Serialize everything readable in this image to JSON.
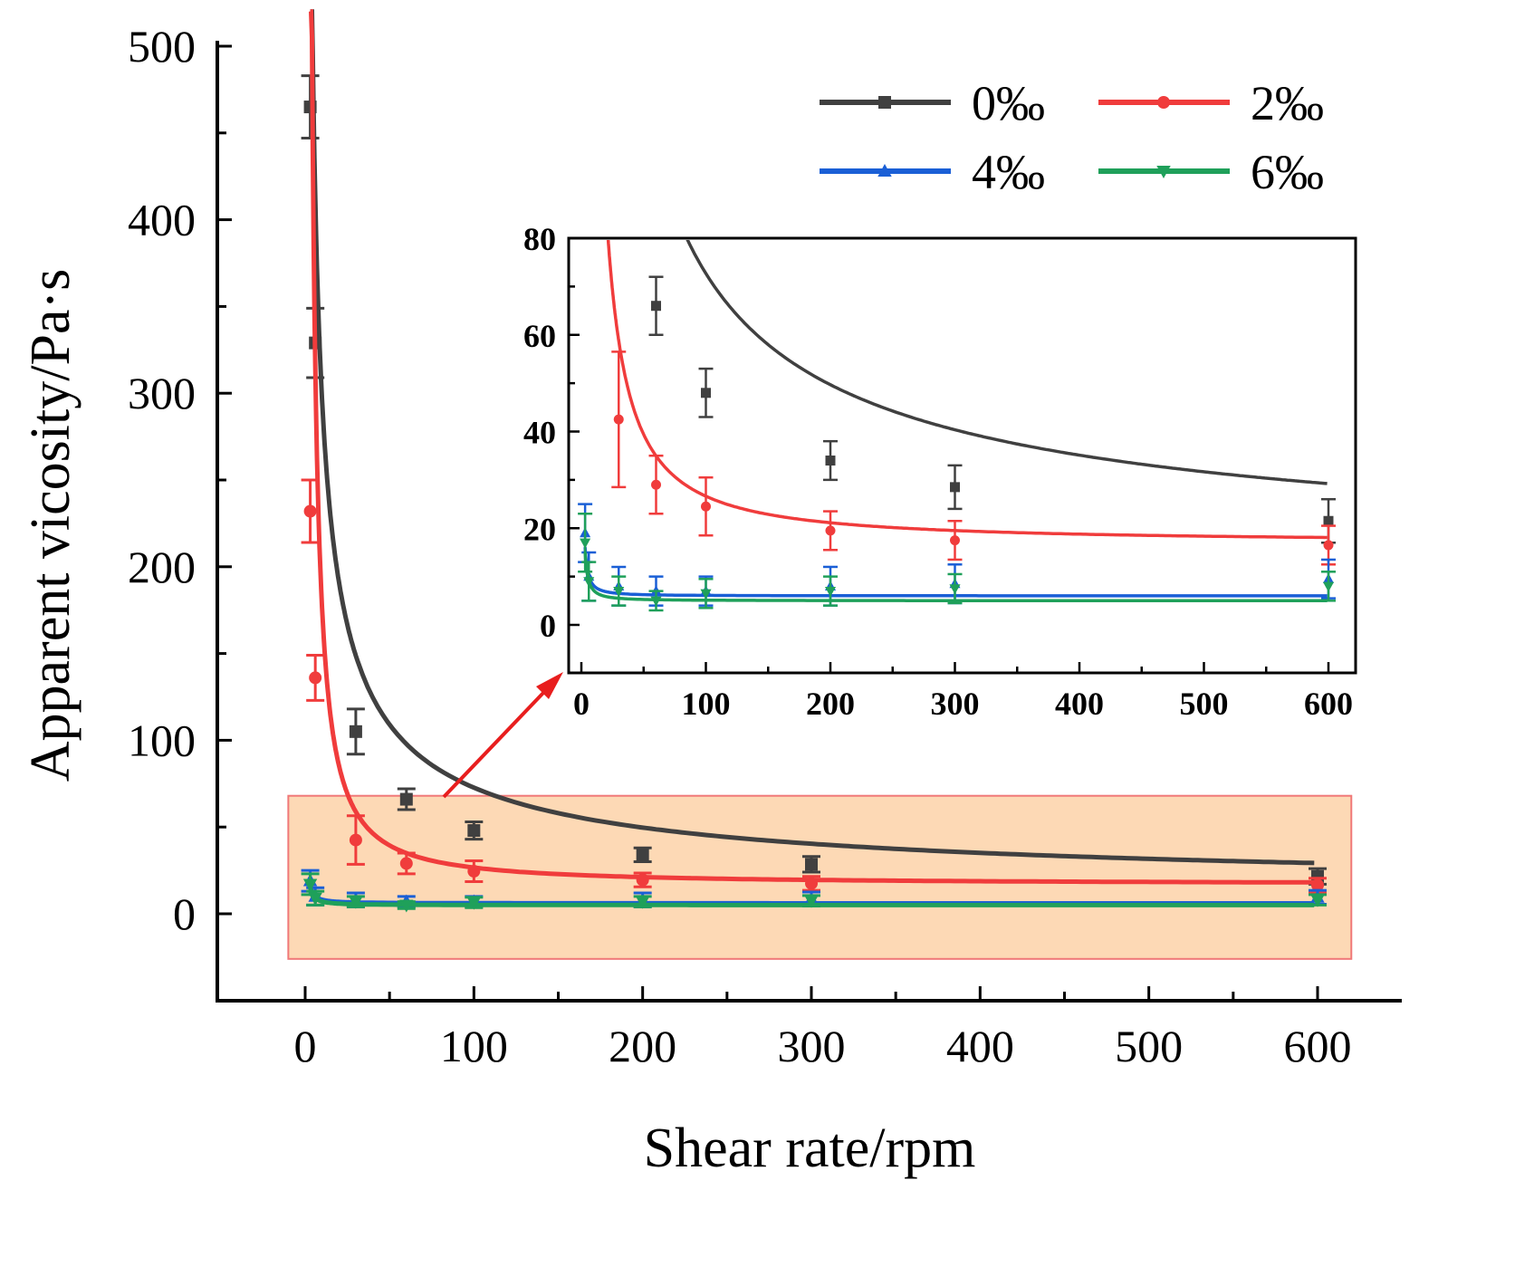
{
  "chart_data": [
    {
      "type": "line",
      "title": "",
      "xlabel": "Shear rate/rpm",
      "ylabel": "Apparent vicosity/Pa·s",
      "xlim": [
        -50,
        650
      ],
      "ylim": [
        -50,
        500
      ],
      "xticks": [
        "0",
        "100",
        "200",
        "300",
        "400",
        "500",
        "600"
      ],
      "yticks": [
        "0",
        "100",
        "200",
        "300",
        "400",
        "500"
      ],
      "legend_position": "top-right",
      "highlight_region": {
        "x": [
          -10,
          620
        ],
        "y": [
          -26,
          68
        ],
        "color": "#fdd9b5"
      },
      "x": [
        3,
        6,
        30,
        60,
        100,
        200,
        300,
        600
      ],
      "series": [
        {
          "name": "0‰",
          "color": "#404040",
          "marker": "square",
          "values": [
            465,
            329,
            105,
            66,
            48,
            34,
            28.5,
            21.5
          ],
          "errors": [
            18,
            20,
            13,
            6,
            5,
            4,
            4.5,
            4.5
          ],
          "fit": {
            "a": 1310,
            "b": 0.66,
            "c": 10
          }
        },
        {
          "name": "2‰",
          "color": "#f03c3c",
          "marker": "circle",
          "values": [
            232,
            136,
            42.5,
            29,
            24.5,
            19.5,
            17.5,
            16.5
          ],
          "errors": [
            18,
            13,
            14,
            6,
            6,
            4,
            4,
            4
          ],
          "fit": {
            "a": 2650,
            "b": 1.22,
            "c": 17
          }
        },
        {
          "name": "4‰",
          "color": "#1a5fd6",
          "marker": "triangle-up",
          "values": [
            19,
            10,
            8,
            7,
            7,
            8,
            8.5,
            9.5
          ],
          "errors": [
            6,
            5,
            4,
            3,
            3,
            4,
            4,
            4
          ],
          "fit": {
            "a": 42,
            "b": 1.3,
            "c": 6
          }
        },
        {
          "name": "6‰",
          "color": "#1fa05a",
          "marker": "triangle-down",
          "values": [
            17,
            9,
            7,
            5,
            6.5,
            7,
            7.5,
            8
          ],
          "errors": [
            6,
            4,
            3,
            2,
            3,
            3,
            3,
            3
          ],
          "fit": {
            "a": 42,
            "b": 1.3,
            "c": 5
          }
        }
      ]
    },
    {
      "type": "line",
      "title": "",
      "xlabel": "",
      "ylabel": "",
      "xlim": [
        -5,
        620
      ],
      "ylim": [
        -10,
        80
      ],
      "xticks": [
        "0",
        "100",
        "200",
        "300",
        "400",
        "500",
        "600"
      ],
      "yticks": [
        "0",
        "20",
        "40",
        "60",
        "80"
      ],
      "note": "inset zoom of highlighted region"
    }
  ]
}
